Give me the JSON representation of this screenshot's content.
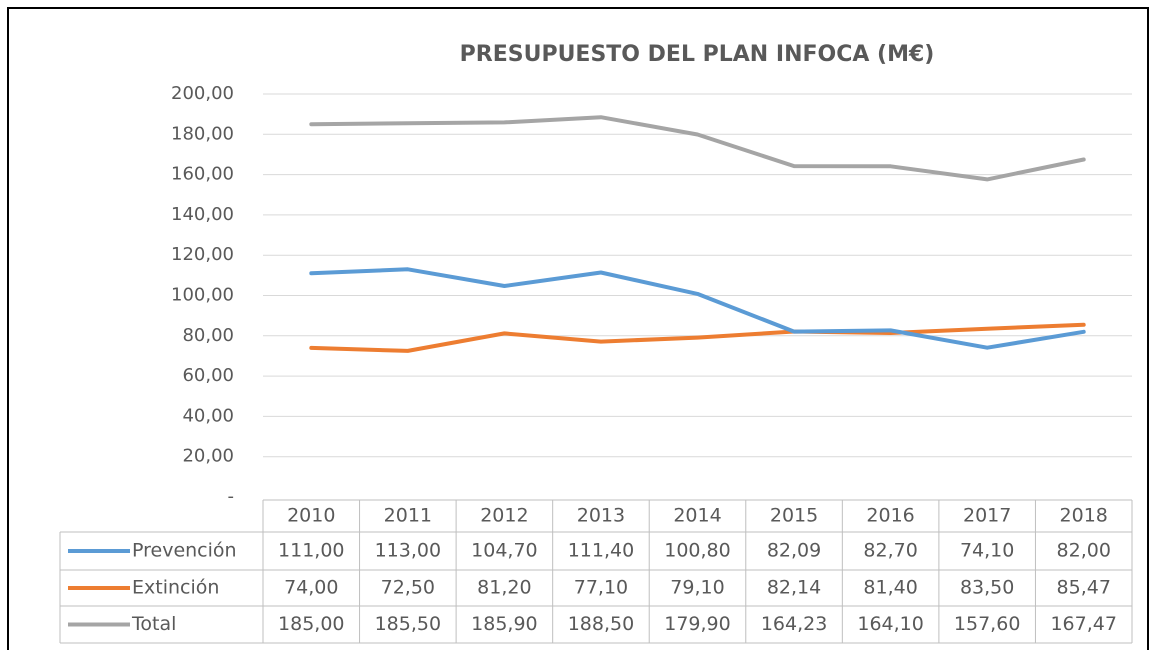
{
  "chart_data": {
    "type": "line",
    "title": "PRESUPUESTO DEL PLAN INFOCA (M€)",
    "categories": [
      "2010",
      "2011",
      "2012",
      "2013",
      "2014",
      "2015",
      "2016",
      "2017",
      "2018"
    ],
    "series": [
      {
        "name": "Prevención",
        "color": "#5b9bd5",
        "values": [
          111.0,
          113.0,
          104.7,
          111.4,
          100.8,
          82.09,
          82.7,
          74.1,
          82.0
        ],
        "value_labels": [
          "111,00",
          "113,00",
          "104,70",
          "111,40",
          "100,80",
          "82,09",
          "82,70",
          "74,10",
          "82,00"
        ]
      },
      {
        "name": "Extinción",
        "color": "#ed7d31",
        "values": [
          74.0,
          72.5,
          81.2,
          77.1,
          79.1,
          82.14,
          81.4,
          83.5,
          85.47
        ],
        "value_labels": [
          "74,00",
          "72,50",
          "81,20",
          "77,10",
          "79,10",
          "82,14",
          "81,40",
          "83,50",
          "85,47"
        ]
      },
      {
        "name": "Total",
        "color": "#a5a5a5",
        "values": [
          185.0,
          185.5,
          185.9,
          188.5,
          179.9,
          164.23,
          164.1,
          157.6,
          167.47
        ],
        "value_labels": [
          "185,00",
          "185,50",
          "185,90",
          "188,50",
          "179,90",
          "164,23",
          "164,10",
          "157,60",
          "167,47"
        ]
      }
    ],
    "ylim": [
      0,
      200
    ],
    "yticks": [
      {
        "value": 0,
        "label": "-"
      },
      {
        "value": 20,
        "label": "20,00"
      },
      {
        "value": 40,
        "label": "40,00"
      },
      {
        "value": 60,
        "label": "60,00"
      },
      {
        "value": 80,
        "label": "80,00"
      },
      {
        "value": 100,
        "label": "100,00"
      },
      {
        "value": 120,
        "label": "120,00"
      },
      {
        "value": 140,
        "label": "140,00"
      },
      {
        "value": 160,
        "label": "160,00"
      },
      {
        "value": 180,
        "label": "180,00"
      },
      {
        "value": 200,
        "label": "200,00"
      }
    ],
    "grid": true
  }
}
